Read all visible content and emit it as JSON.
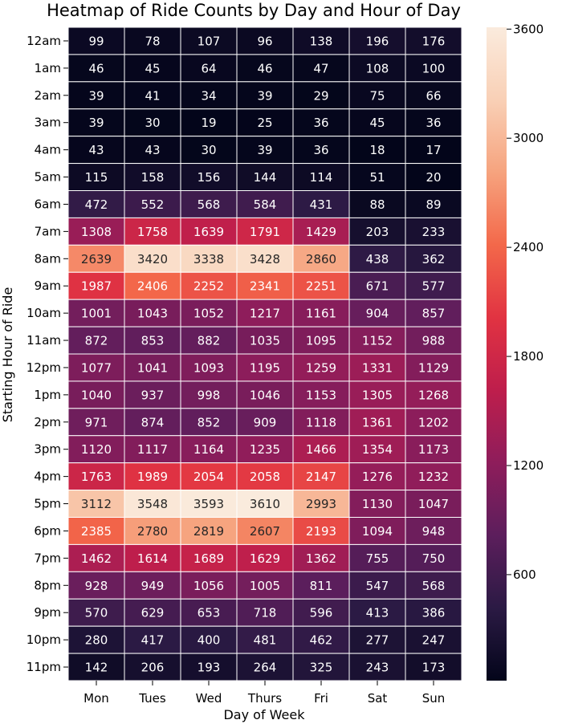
{
  "chart_data": {
    "type": "heatmap",
    "title": "Heatmap of Ride Counts by Day and Hour of Day",
    "xlabel": "Day of Week",
    "ylabel": "Starting Hour of Ride",
    "x": [
      "Mon",
      "Tues",
      "Wed",
      "Thurs",
      "Fri",
      "Sat",
      "Sun"
    ],
    "y": [
      "12am",
      "1am",
      "2am",
      "3am",
      "4am",
      "5am",
      "6am",
      "7am",
      "8am",
      "9am",
      "10am",
      "11am",
      "12pm",
      "1pm",
      "2pm",
      "3pm",
      "4pm",
      "5pm",
      "6pm",
      "7pm",
      "8pm",
      "9pm",
      "10pm",
      "11pm"
    ],
    "values": [
      [
        99,
        78,
        107,
        96,
        138,
        196,
        176
      ],
      [
        46,
        45,
        64,
        46,
        47,
        108,
        100
      ],
      [
        39,
        41,
        34,
        39,
        29,
        75,
        66
      ],
      [
        39,
        30,
        19,
        25,
        36,
        45,
        36
      ],
      [
        43,
        43,
        30,
        39,
        36,
        18,
        17
      ],
      [
        115,
        158,
        156,
        144,
        114,
        51,
        20
      ],
      [
        472,
        552,
        568,
        584,
        431,
        88,
        89
      ],
      [
        1308,
        1758,
        1639,
        1791,
        1429,
        203,
        233
      ],
      [
        2639,
        3420,
        3338,
        3428,
        2860,
        438,
        362
      ],
      [
        1987,
        2406,
        2252,
        2341,
        2251,
        671,
        577
      ],
      [
        1001,
        1043,
        1052,
        1217,
        1161,
        904,
        857
      ],
      [
        872,
        853,
        882,
        1035,
        1095,
        1152,
        988
      ],
      [
        1077,
        1041,
        1093,
        1195,
        1259,
        1331,
        1129
      ],
      [
        1040,
        937,
        998,
        1046,
        1153,
        1305,
        1268
      ],
      [
        971,
        874,
        852,
        909,
        1118,
        1361,
        1202
      ],
      [
        1120,
        1117,
        1164,
        1235,
        1466,
        1354,
        1173
      ],
      [
        1763,
        1989,
        2054,
        2058,
        2147,
        1276,
        1232
      ],
      [
        3112,
        3548,
        3593,
        3610,
        2993,
        1130,
        1047
      ],
      [
        2385,
        2780,
        2819,
        2607,
        2193,
        1094,
        948
      ],
      [
        1462,
        1614,
        1689,
        1629,
        1362,
        755,
        750
      ],
      [
        928,
        949,
        1056,
        1005,
        811,
        547,
        568
      ],
      [
        570,
        629,
        653,
        718,
        596,
        413,
        386
      ],
      [
        280,
        417,
        400,
        481,
        462,
        277,
        247
      ],
      [
        142,
        206,
        193,
        264,
        325,
        243,
        173
      ]
    ],
    "colorbar": {
      "range": [
        17,
        3610
      ],
      "ticks": [
        600,
        1200,
        1800,
        2400,
        3000,
        3600
      ],
      "tick_labels": [
        "600",
        "1200",
        "1800",
        "2400",
        "3000",
        "3600"
      ],
      "colormap": "rocket",
      "colormap_stops": [
        "#03051a",
        "#2b1a44",
        "#5c1e5c",
        "#8e1d5b",
        "#be1e4c",
        "#e13342",
        "#f3684a",
        "#f6a37e",
        "#f9d0b6",
        "#faebdd"
      ]
    },
    "legend": "colorbar-right",
    "grid": false
  }
}
